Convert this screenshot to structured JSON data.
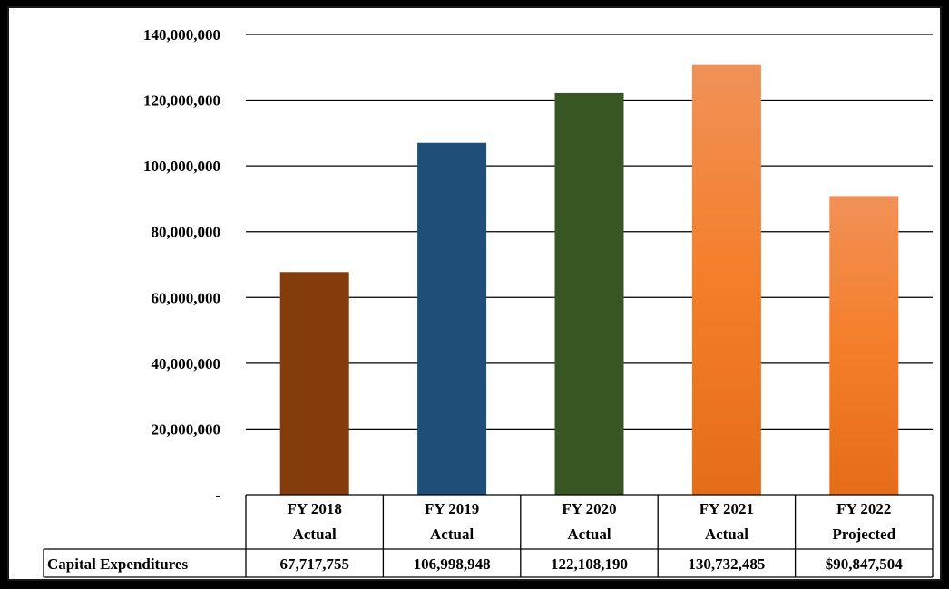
{
  "chart_data": {
    "type": "bar",
    "categories": [
      "FY 2018 Actual",
      "FY 2019 Actual",
      "FY 2020 Actual",
      "FY 2021 Actual",
      "FY 2022 Projected"
    ],
    "category_lines": [
      [
        "FY 2018",
        "Actual"
      ],
      [
        "FY 2019",
        "Actual"
      ],
      [
        "FY 2020",
        "Actual"
      ],
      [
        "FY 2021",
        "Actual"
      ],
      [
        "FY 2022",
        "Projected"
      ]
    ],
    "series": [
      {
        "name": "Capital Expenditures",
        "values": [
          67717755,
          106998948,
          122108190,
          130732485,
          90847504
        ],
        "value_labels": [
          "67,717,755",
          "106,998,948",
          "122,108,190",
          "130,732,485",
          "$90,847,504"
        ]
      }
    ],
    "ylim": [
      0,
      140000000
    ],
    "yticks": [
      0,
      20000000,
      40000000,
      60000000,
      80000000,
      100000000,
      120000000,
      140000000
    ],
    "ytick_labels": [
      "-",
      "20,000,000",
      "40,000,000",
      "60,000,000",
      "80,000,000",
      "100,000,000",
      "120,000,000",
      "140,000,000"
    ],
    "bar_colors": [
      "#843c0c",
      "#1f4e79",
      "#375623",
      "#f4822a",
      "#f4822a"
    ],
    "grid": true,
    "legend": "data table below chart"
  }
}
